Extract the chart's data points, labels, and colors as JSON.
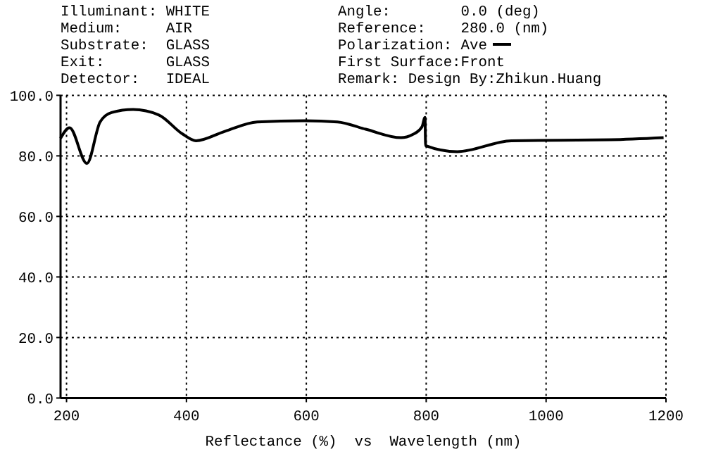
{
  "chart_data": {
    "type": "line",
    "xlabel": "Reflectance (%)  vs  Wavelength (nm)",
    "annotations": [
      "Illuminant: WHITE",
      "Medium:     AIR",
      "Substrate:  GLASS",
      "Exit:       GLASS",
      "Detector:   IDEAL",
      "Angle:        0.0 (deg)",
      "Reference:    280.0 (nm)",
      "First Surface:Front",
      "Remark: Design By:Zhikun.Huang"
    ],
    "series": [
      {
        "name": "Polarization: Ave",
        "color": "#000000",
        "x": [
          190,
          205,
          234,
          256,
          275,
          311,
          354,
          393,
          416,
          464,
          518,
          597,
          652,
          699,
          758,
          777,
          793,
          798,
          799,
          852,
          942,
          1107,
          1196
        ],
        "values": [
          85.8,
          89.3,
          77.5,
          91.2,
          94.3,
          95.3,
          93.5,
          87.3,
          85,
          88.1,
          91.2,
          91.6,
          91.2,
          88.8,
          86,
          87,
          89.6,
          92.7,
          83.4,
          81.4,
          85,
          85.3,
          86
        ]
      }
    ],
    "xlim": [
      190,
      1200
    ],
    "xticks": [
      200,
      400,
      600,
      800,
      1000,
      1200
    ],
    "ylim": [
      0,
      100
    ],
    "yticks": [
      {
        "value": 0,
        "label": "0.0"
      },
      {
        "value": 20,
        "label": "20.0"
      },
      {
        "value": 40,
        "label": "40.0"
      },
      {
        "value": 60,
        "label": "60.0"
      },
      {
        "value": 80,
        "label": "80.0"
      },
      {
        "value": 100,
        "label": "100.0"
      }
    ],
    "grid": true,
    "legend": "top",
    "line_style": "solid"
  }
}
